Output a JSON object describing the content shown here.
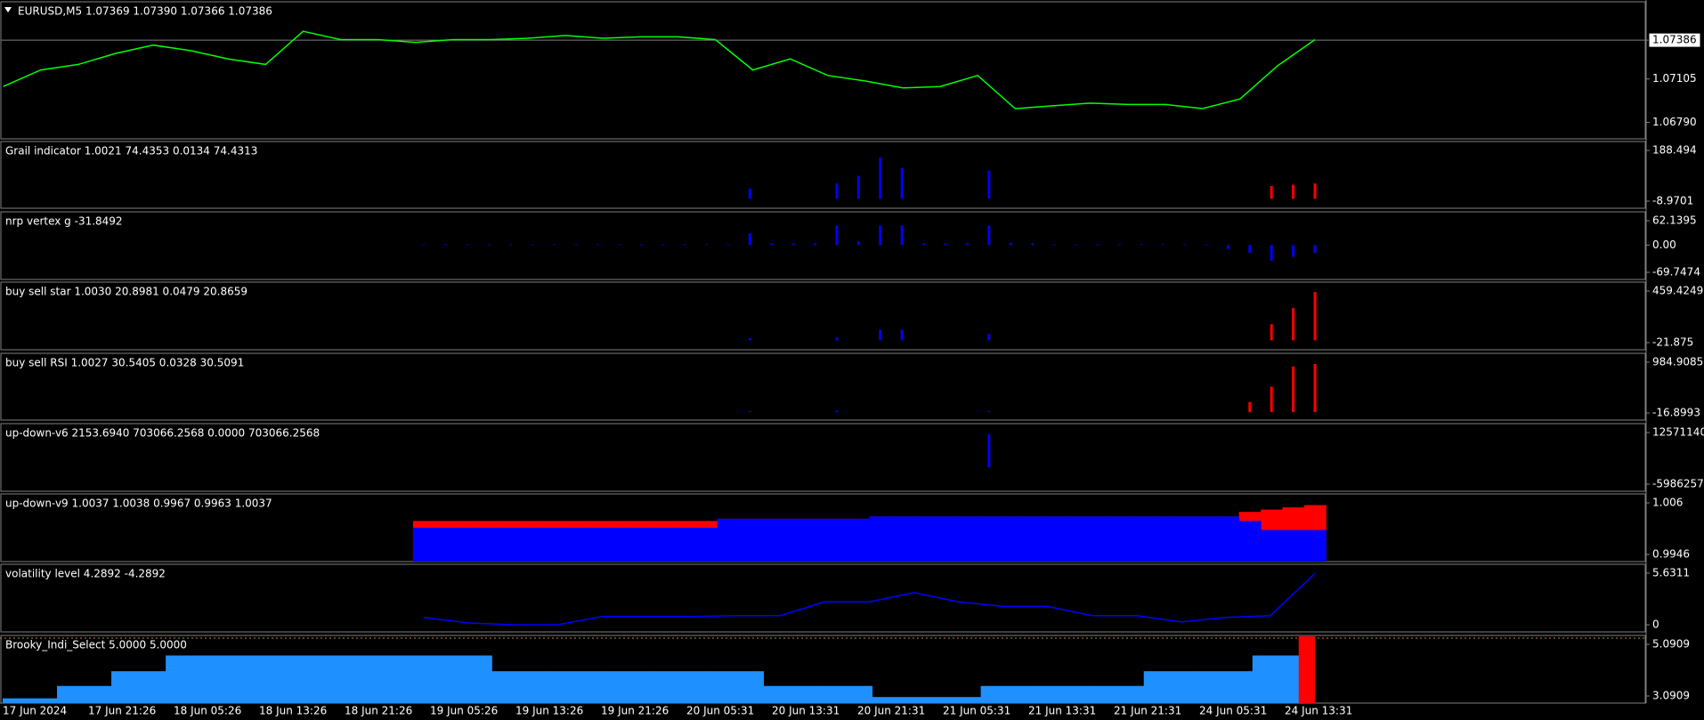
{
  "chart_data": {
    "type": "multi-pane",
    "panes": [
      {
        "label": "EURUSD,M5  1.07369 1.07390 1.07366 1.07386",
        "ylim": [
          1.06671,
          1.07664
        ],
        "price_line": 1.07386,
        "yticks": [
          1.07386,
          1.07105,
          {
            "value": 1.0679,
            "label": "1.06790"
          }
        ],
        "series": [
          {
            "kind": "line",
            "color": "#00ff00",
            "values": [
              1.0705,
              1.0717,
              1.0721,
              1.0729,
              1.0735,
              1.0731,
              1.0725,
              1.0721,
              1.0745,
              1.0739,
              1.0739,
              1.0737,
              1.0739,
              1.0739,
              1.074,
              1.0742,
              1.074,
              1.0741,
              1.0741,
              1.0739,
              1.0717,
              1.0725,
              1.0713,
              1.0709,
              1.0704,
              1.0705,
              1.0713,
              1.0689,
              1.0691,
              1.0693,
              1.0692,
              1.0692,
              1.0689,
              1.0696,
              1.072,
              1.0739
            ]
          }
        ]
      },
      {
        "label": "Grail indicator 1.0021 74.4353 0.0134 74.4313",
        "ylim": [
          -8.9701,
          188.494
        ],
        "yticks": [
          188.494,
          -8.9701
        ],
        "series": [
          {
            "kind": "bars",
            "color": "#0000ff",
            "values": [
              0,
              0,
              0,
              0,
              0,
              0,
              0,
              0,
              0,
              0,
              0,
              0,
              0,
              0,
              0,
              40,
              0,
              0,
              0,
              60,
              90,
              160,
              120,
              0,
              0,
              0,
              110,
              0,
              0,
              0,
              0,
              0,
              0,
              0,
              0,
              0,
              0,
              0,
              0,
              0,
              0,
              0
            ]
          },
          {
            "kind": "bars",
            "color": "#ff0000",
            "values": [
              0,
              0,
              0,
              0,
              0,
              0,
              0,
              0,
              0,
              0,
              0,
              0,
              0,
              0,
              0,
              0,
              0,
              0,
              0,
              0,
              0,
              0,
              0,
              0,
              0,
              0,
              0,
              0,
              0,
              0,
              0,
              0,
              0,
              0,
              0,
              0,
              0,
              0,
              0,
              50,
              55,
              60
            ]
          }
        ]
      },
      {
        "label": "nrp vertex g -31.8492",
        "ylim": [
          -69.7474,
          62.1395
        ],
        "yticks": [
          62.1395,
          {
            "value": 0,
            "label": "0.00"
          },
          -69.7474
        ],
        "series": [
          {
            "kind": "bars",
            "color": "#0000ff",
            "values": [
              2,
              2,
              2,
              2,
              2,
              2,
              2,
              2,
              2,
              2,
              2,
              2,
              2,
              2,
              2,
              30,
              4,
              4,
              4,
              50,
              10,
              50,
              50,
              4,
              4,
              4,
              50,
              6,
              4,
              2,
              2,
              2,
              2,
              2,
              2,
              2,
              2,
              -10,
              -20,
              -40,
              -30,
              -20
            ]
          }
        ]
      },
      {
        "label": "buy sell star 1.0030 20.8981 0.0479 20.8659",
        "ylim": [
          -21.875,
          459.4249
        ],
        "yticks": [
          459.4249,
          -21.875
        ],
        "series": [
          {
            "kind": "bars",
            "color": "#0000ff",
            "values": [
              0,
              0,
              0,
              0,
              0,
              0,
              0,
              0,
              0,
              0,
              0,
              0,
              0,
              0,
              0,
              20,
              0,
              0,
              0,
              30,
              0,
              100,
              100,
              0,
              0,
              0,
              60,
              0,
              0,
              0,
              0,
              0,
              0,
              0,
              0,
              0,
              0,
              0,
              0,
              0,
              0,
              0
            ]
          },
          {
            "kind": "bars",
            "color": "#ff0000",
            "values": [
              0,
              0,
              0,
              0,
              0,
              0,
              0,
              0,
              0,
              0,
              0,
              0,
              0,
              0,
              0,
              0,
              0,
              0,
              0,
              0,
              0,
              0,
              0,
              0,
              0,
              0,
              0,
              0,
              0,
              0,
              0,
              0,
              0,
              0,
              0,
              0,
              0,
              0,
              0,
              150,
              300,
              450
            ]
          }
        ]
      },
      {
        "label": "buy sell RSI 1.0027 30.5405 0.0328 30.5091",
        "ylim": [
          -16.8993,
          984.9085
        ],
        "yticks": [
          984.9085,
          -16.8993
        ],
        "series": [
          {
            "kind": "bars",
            "color": "#0000ff",
            "values": [
              0,
              0,
              0,
              0,
              0,
              0,
              0,
              0,
              0,
              0,
              0,
              0,
              0,
              0,
              0,
              20,
              0,
              0,
              0,
              30,
              0,
              0,
              0,
              0,
              0,
              0,
              20,
              0,
              0,
              0,
              0,
              0,
              0,
              0,
              0,
              0,
              0,
              0,
              0,
              0,
              0,
              0
            ]
          },
          {
            "kind": "bars",
            "color": "#ff0000",
            "values": [
              0,
              0,
              0,
              0,
              0,
              0,
              0,
              0,
              0,
              0,
              0,
              0,
              0,
              0,
              0,
              0,
              0,
              0,
              0,
              0,
              0,
              0,
              0,
              0,
              0,
              0,
              0,
              0,
              0,
              0,
              0,
              0,
              0,
              0,
              0,
              0,
              0,
              0,
              200,
              500,
              900,
              950
            ]
          }
        ]
      },
      {
        "label": "up-down-v6 2153.6940 703066.2568 0.0000 703066.2568",
        "ylim": [
          -5986257.3,
          12571140
        ],
        "yticks": [
          12571140,
          -5986257.3
        ],
        "series": [
          {
            "kind": "bars",
            "color": "#0000ff",
            "values": [
              0,
              0,
              0,
              0,
              0,
              0,
              0,
              0,
              0,
              0,
              0,
              0,
              0,
              0,
              0,
              0,
              0,
              0,
              0,
              0,
              0,
              0,
              0,
              0,
              0,
              0,
              12000000,
              0,
              0,
              0,
              0,
              0,
              0,
              0,
              0,
              0,
              0,
              0,
              0,
              0,
              0,
              0
            ]
          }
        ]
      },
      {
        "label": "up-down-v9 1.0037 1.0038 0.9967 0.9963 1.0037",
        "ylim": [
          0.9946,
          1.006
        ],
        "yticks": [
          1.006,
          0.9946
        ],
        "series": [
          {
            "kind": "columns",
            "color": "#ff0000",
            "values": [
              1.002,
              1.002,
              1.002,
              1.002,
              1.002,
              1.002,
              1.002,
              1.002,
              1.002,
              1.002,
              1.002,
              1.002,
              1.002,
              1.002,
              1.0025,
              1.0025,
              1.0025,
              1.0025,
              1.0025,
              1.0025,
              1.0025,
              1.003,
              1.003,
              1.003,
              1.003,
              1.003,
              1.003,
              1.003,
              1.003,
              1.003,
              1.003,
              1.003,
              1.003,
              1.003,
              1.003,
              1.003,
              1.003,
              1.003,
              1.004,
              1.0045,
              1.005,
              1.0055
            ]
          },
          {
            "kind": "columns",
            "color": "#0000ff",
            "values": [
              1.0005,
              1.0005,
              1.0005,
              1.0005,
              1.0005,
              1.0005,
              1.0005,
              1.0005,
              1.0005,
              1.0005,
              1.0005,
              1.0005,
              1.0005,
              1.0005,
              1.0025,
              1.0025,
              1.0025,
              1.0025,
              1.0025,
              1.0025,
              1.0025,
              1.003,
              1.003,
              1.003,
              1.003,
              1.003,
              1.003,
              1.003,
              1.003,
              1.003,
              1.003,
              1.003,
              1.003,
              1.003,
              1.003,
              1.003,
              1.003,
              1.003,
              1.002,
              1.0,
              1.0,
              1.0
            ]
          }
        ]
      },
      {
        "label": "volatility level 4.2892 -4.2892",
        "ylim": [
          0,
          5.6311
        ],
        "yticks": [
          5.6311,
          0
        ],
        "series": [
          {
            "kind": "line",
            "color": "#0000ff",
            "values": [
              0.8,
              0.2,
              0,
              0,
              0.9,
              0.9,
              0.9,
              1.0,
              1.0,
              2.5,
              2.5,
              3.5,
              2.5,
              2.0,
              2.0,
              1.0,
              1.0,
              0.3,
              0.8,
              1.0,
              5.6
            ]
          }
        ]
      },
      {
        "label": "Brooky_Indi_Select 5.0000 5.0000",
        "ylim": [
          3.0909,
          5.0909
        ],
        "yticks": [
          5.0909,
          3.0909
        ],
        "series": [
          {
            "kind": "steps",
            "color": "#1e90ff",
            "values": [
              3.0,
              3.48,
              4.05,
              4.66,
              4.66,
              4.66,
              4.66,
              4.66,
              4.66,
              4.05,
              4.05,
              4.05,
              4.05,
              4.05,
              3.48,
              3.48,
              3.05,
              3.05,
              3.48,
              3.48,
              3.48,
              4.05,
              4.05,
              4.66
            ]
          },
          {
            "kind": "tail",
            "color": "#ff0000",
            "values": [
              5.0909
            ]
          }
        ]
      }
    ],
    "x_labels": [
      "17 Jun 2024",
      "17 Jun 21:26",
      "18 Jun 05:26",
      "18 Jun 13:26",
      "18 Jun 21:26",
      "19 Jun 05:26",
      "19 Jun 13:26",
      "19 Jun 21:26",
      "20 Jun 05:31",
      "20 Jun 13:31",
      "20 Jun 21:31",
      "21 Jun 05:31",
      "21 Jun 13:31",
      "21 Jun 21:31",
      "24 Jun 05:31",
      "24 Jun 13:31"
    ]
  }
}
